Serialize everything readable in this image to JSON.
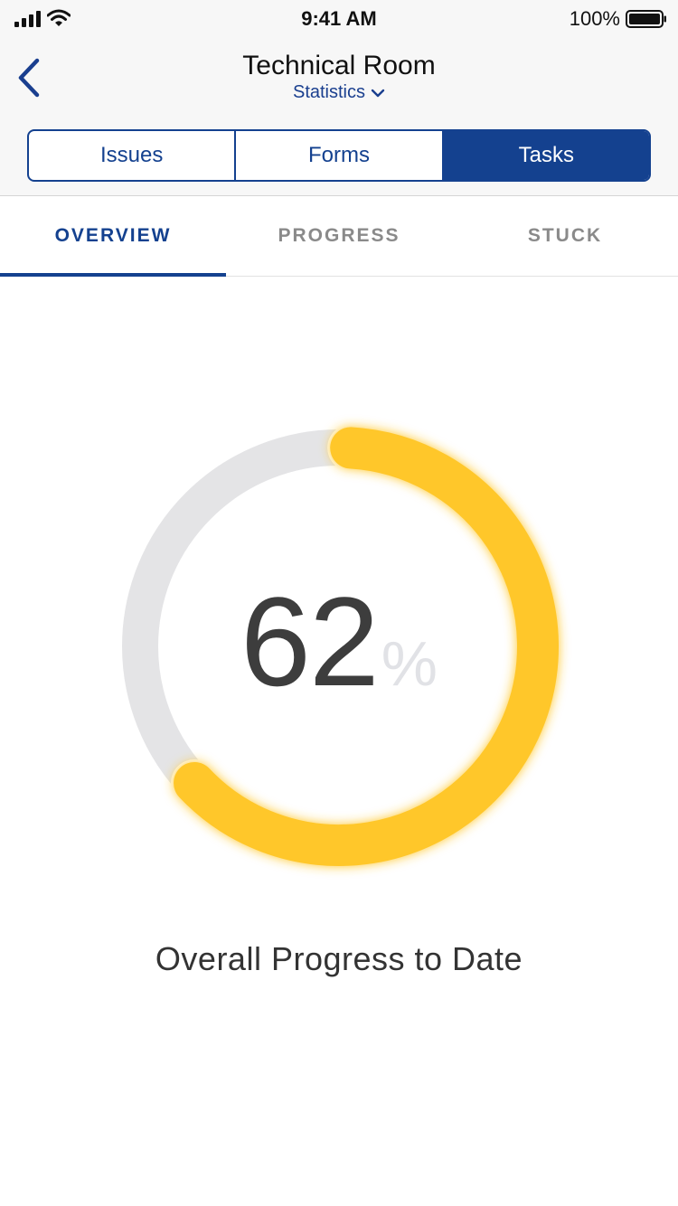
{
  "status_bar": {
    "time": "9:41 AM",
    "battery_percent": "100%",
    "icons": [
      "signal-icon",
      "wifi-icon",
      "battery-icon"
    ]
  },
  "nav": {
    "title": "Technical Room",
    "subtitle": "Statistics",
    "back_icon": "chevron-left-icon",
    "subtitle_icon": "chevron-down-icon"
  },
  "segments": {
    "items": [
      {
        "label": "Issues",
        "active": false
      },
      {
        "label": "Forms",
        "active": false
      },
      {
        "label": "Tasks",
        "active": true
      }
    ]
  },
  "subtabs": {
    "items": [
      {
        "label": "OVERVIEW",
        "active": true
      },
      {
        "label": "PROGRESS",
        "active": false
      },
      {
        "label": "STUCK",
        "active": false
      }
    ]
  },
  "progress": {
    "value": "62",
    "unit": "%",
    "fraction": 0.62,
    "caption": "Overall Progress to Date"
  },
  "colors": {
    "primary": "#14418f",
    "progress": "#ffc72c",
    "track": "#e4e4e6",
    "unit": "#e1e2e6"
  }
}
